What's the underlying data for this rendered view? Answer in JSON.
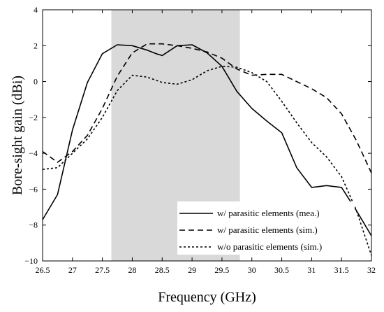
{
  "chart_data": {
    "type": "line",
    "xlabel": "Frequency (GHz)",
    "ylabel": "Bore-sight gain (dBi)",
    "xlim": [
      26.5,
      32
    ],
    "ylim": [
      -10,
      4
    ],
    "x_ticks": [
      "26.5",
      "27",
      "27.5",
      "28",
      "28.5",
      "29",
      "29.5",
      "30",
      "30.5",
      "31",
      "31.5",
      "32"
    ],
    "y_ticks": [
      "−10",
      "−8",
      "−6",
      "−4",
      "−2",
      "0",
      "2",
      "4"
    ],
    "grid": false,
    "legend_position": "bottom-right",
    "shaded_region": {
      "x_start": 27.65,
      "x_end": 29.8,
      "color": "#d9d9d9"
    },
    "series": [
      {
        "name": "w/ parasitic elements (mea.)",
        "style": "solid",
        "x": [
          26.5,
          26.75,
          27.0,
          27.25,
          27.5,
          27.75,
          28.0,
          28.25,
          28.4,
          28.5,
          28.75,
          29.0,
          29.25,
          29.5,
          29.75,
          30.0,
          30.25,
          30.5,
          30.75,
          31.0,
          31.25,
          31.5,
          31.75,
          32.0
        ],
        "y": [
          -7.7,
          -6.3,
          -2.7,
          -0.05,
          1.55,
          2.05,
          2.0,
          1.75,
          1.55,
          1.45,
          2.0,
          2.05,
          1.6,
          0.85,
          -0.55,
          -1.5,
          -2.2,
          -2.85,
          -4.8,
          -5.9,
          -5.8,
          -5.9,
          -7.2,
          -8.6
        ]
      },
      {
        "name": "w/ parasitic elements (sim.)",
        "style": "dashed",
        "x": [
          26.5,
          26.75,
          27.0,
          27.25,
          27.5,
          27.75,
          28.0,
          28.25,
          28.5,
          28.75,
          29.0,
          29.25,
          29.5,
          29.75,
          30.0,
          30.25,
          30.5,
          30.75,
          31.0,
          31.25,
          31.5,
          31.75,
          32.0
        ],
        "y": [
          -3.9,
          -4.5,
          -3.9,
          -3.0,
          -1.5,
          0.3,
          1.6,
          2.1,
          2.1,
          2.0,
          1.85,
          1.65,
          1.3,
          0.7,
          0.35,
          0.4,
          0.4,
          0.0,
          -0.4,
          -0.9,
          -1.8,
          -3.3,
          -5.1
        ]
      },
      {
        "name": "w/o parasitic elements (sim.)",
        "style": "dotted",
        "x": [
          26.5,
          26.75,
          27.0,
          27.25,
          27.5,
          27.75,
          28.0,
          28.25,
          28.5,
          28.75,
          29.0,
          29.25,
          29.5,
          29.75,
          30.0,
          30.25,
          30.5,
          30.75,
          31.0,
          31.25,
          31.5,
          31.75,
          32.0
        ],
        "y": [
          -4.9,
          -4.8,
          -4.0,
          -3.2,
          -2.0,
          -0.5,
          0.35,
          0.25,
          -0.05,
          -0.15,
          0.1,
          0.6,
          0.85,
          0.8,
          0.5,
          0.0,
          -1.1,
          -2.3,
          -3.4,
          -4.2,
          -5.3,
          -7.2,
          -9.7
        ]
      }
    ]
  }
}
